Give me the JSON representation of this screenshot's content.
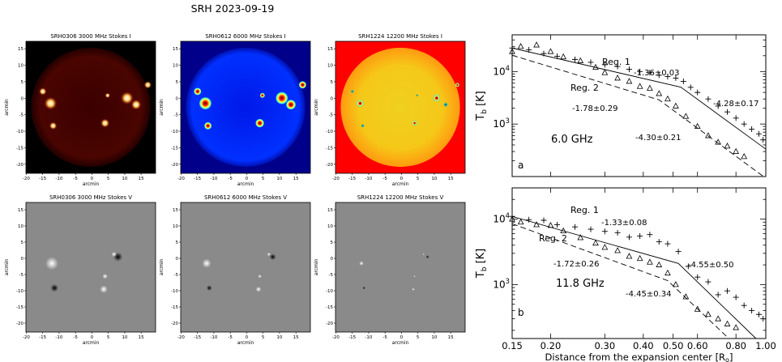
{
  "suptitle": "SRH 2023-09-19",
  "maps": [
    {
      "title": "SRH0306 3000 MHz Stokes I",
      "kind": "I",
      "cmap": "hot"
    },
    {
      "title": "SRH0612 6000 MHz Stokes I",
      "kind": "I",
      "cmap": "jet-low"
    },
    {
      "title": "SRH1224 12200 MHz Stokes I",
      "kind": "I",
      "cmap": "jet-high"
    },
    {
      "title": "SRH0306 3000 MHz Stokes V",
      "kind": "V",
      "cmap": "gray"
    },
    {
      "title": "SRH0612 6000 MHz Stokes V",
      "kind": "V",
      "cmap": "gray"
    },
    {
      "title": "SRH1224 12200 MHz Stokes V",
      "kind": "V",
      "cmap": "gray"
    }
  ],
  "map_axes": {
    "xlabel": "arcmin",
    "ylabel": "arcmin",
    "xticks": [
      "-20",
      "-15",
      "-10",
      "-5",
      "0",
      "5",
      "10",
      "15"
    ],
    "yticks": [
      "15",
      "10",
      "5",
      "0",
      "-5",
      "-10",
      "-15",
      "-20"
    ]
  },
  "chart_data": [
    {
      "type": "scatter",
      "panel": "a",
      "freq_label": "6.0 GHz",
      "xlabel": "",
      "ylabel": "T_b [K]",
      "yscale": "log",
      "xscale": "log",
      "xlim": [
        0.15,
        1.0
      ],
      "ylim": [
        100,
        50000
      ],
      "yticks": [
        {
          "v": 1000,
          "label": "10^3"
        },
        {
          "v": 10000,
          "label": "10^4"
        }
      ],
      "series": [
        {
          "name": "Reg. 1",
          "marker": "+",
          "x": [
            0.15,
            0.17,
            0.19,
            0.21,
            0.24,
            0.27,
            0.3,
            0.33,
            0.36,
            0.39,
            0.42,
            0.45,
            0.48,
            0.51,
            0.54,
            0.57,
            0.6,
            0.65,
            0.7,
            0.75,
            0.8,
            0.85,
            0.9,
            0.95,
            0.98
          ],
          "y": [
            28000,
            26000,
            22000,
            19500,
            17000,
            15000,
            13500,
            12500,
            11000,
            10000,
            9500,
            8500,
            8000,
            7500,
            6500,
            5000,
            4000,
            3000,
            2200,
            1700,
            1300,
            1000,
            800,
            650,
            500
          ]
        },
        {
          "name": "Reg. 2",
          "marker": "triangle",
          "x": [
            0.15,
            0.16,
            0.18,
            0.2,
            0.22,
            0.25,
            0.28,
            0.3,
            0.33,
            0.36,
            0.39,
            0.42,
            0.45,
            0.48,
            0.51,
            0.55,
            0.6,
            0.65,
            0.7,
            0.75,
            0.8,
            0.85
          ],
          "y": [
            24000,
            30000,
            32000,
            24000,
            19000,
            16000,
            12000,
            9500,
            7500,
            6500,
            5200,
            4800,
            3800,
            3000,
            2200,
            1400,
            900,
            600,
            450,
            380,
            300,
            240
          ]
        }
      ],
      "fits": [
        {
          "label": "-1.36±0.03",
          "series": "Reg. 1"
        },
        {
          "label": "-4.28±0.17",
          "series": "Reg. 1"
        },
        {
          "label": "-1.78±0.29",
          "series": "Reg. 2"
        },
        {
          "label": "-4.30±0.21",
          "series": "Reg. 2"
        }
      ]
    },
    {
      "type": "scatter",
      "panel": "b",
      "freq_label": "11.8 GHz",
      "xlabel": "Distance from the expansion center [R_o]",
      "ylabel": "T_b [K]",
      "yscale": "log",
      "xscale": "log",
      "xlim": [
        0.15,
        1.0
      ],
      "ylim": [
        150,
        30000
      ],
      "xticks": [
        "0.15",
        "0.20",
        "0.30",
        "0.40",
        "0.50",
        "0.60",
        "0.80",
        "1.00"
      ],
      "yticks": [
        {
          "v": 1000,
          "label": "10^3"
        },
        {
          "v": 10000,
          "label": "10^4"
        }
      ],
      "series": [
        {
          "name": "Reg. 1",
          "marker": "+",
          "x": [
            0.15,
            0.17,
            0.19,
            0.21,
            0.24,
            0.27,
            0.3,
            0.33,
            0.36,
            0.39,
            0.42,
            0.45,
            0.48,
            0.52,
            0.56,
            0.6,
            0.65,
            0.7,
            0.75,
            0.8,
            0.85,
            0.9,
            0.95,
            0.98
          ],
          "y": [
            11000,
            9800,
            9600,
            8200,
            7600,
            7000,
            6500,
            6200,
            5300,
            5500,
            5800,
            4500,
            4200,
            3200,
            1900,
            1300,
            1100,
            700,
            800,
            640,
            480,
            400,
            350,
            300
          ]
        },
        {
          "name": "Reg. 2",
          "marker": "triangle",
          "x": [
            0.15,
            0.16,
            0.18,
            0.2,
            0.22,
            0.25,
            0.28,
            0.3,
            0.33,
            0.36,
            0.39,
            0.42,
            0.45,
            0.48,
            0.51,
            0.55,
            0.6,
            0.65,
            0.7,
            0.75,
            0.8
          ],
          "y": [
            10000,
            9000,
            8200,
            8000,
            6600,
            5200,
            4300,
            3700,
            3300,
            2700,
            2500,
            2200,
            2000,
            1500,
            1000,
            650,
            420,
            350,
            300,
            250,
            220
          ]
        }
      ],
      "fits": [
        {
          "label": "-1.33±0.08",
          "series": "Reg. 1"
        },
        {
          "label": "-4.55±0.50",
          "series": "Reg. 1"
        },
        {
          "label": "-1.72±0.26",
          "series": "Reg. 2"
        },
        {
          "label": "-4.45±0.34",
          "series": "Reg. 2"
        }
      ]
    }
  ]
}
